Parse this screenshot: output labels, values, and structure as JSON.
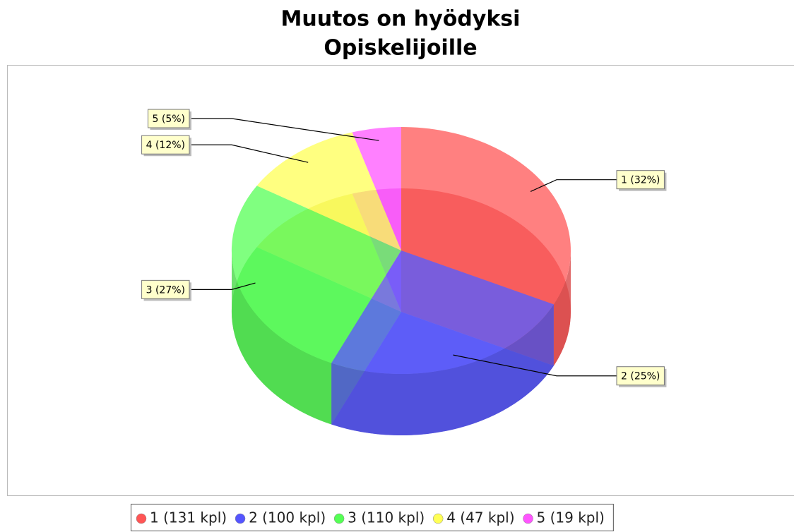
{
  "chart_data": {
    "type": "pie3d",
    "title": "Muutos on hyödyksi",
    "subtitle": "Opiskelijoille",
    "categories": [
      "1",
      "2",
      "3",
      "4",
      "5"
    ],
    "values": [
      131,
      100,
      110,
      47,
      19
    ],
    "legend_labels": [
      "1 (131 kpl)",
      "2 (100 kpl)",
      "3 (110 kpl)",
      "4 (47 kpl)",
      "5 (19 kpl)"
    ],
    "slice_labels": [
      "1 (32%)",
      "2 (25%)",
      "3 (27%)",
      "4 (12%)",
      "5 (5%)"
    ],
    "colors": [
      "#ff5555",
      "#5555ff",
      "#55ff55",
      "#ffff55",
      "#ff55ff"
    ],
    "legend": "bottom"
  }
}
